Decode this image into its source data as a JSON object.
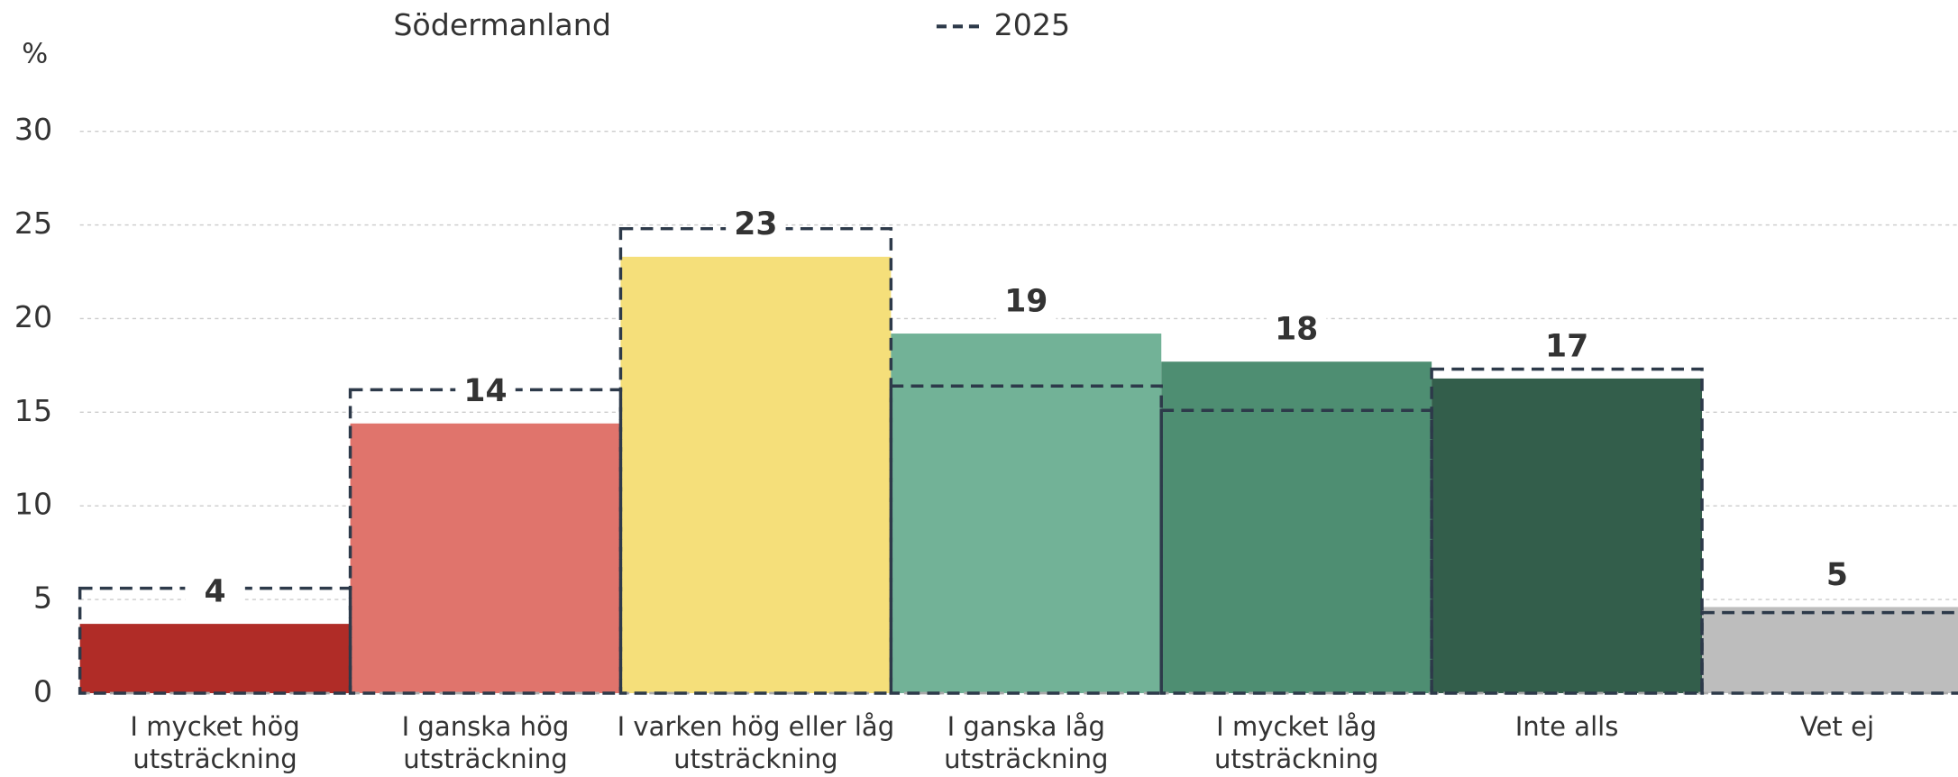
{
  "chart_data": {
    "type": "bar",
    "y_label": "%",
    "categories": [
      "I mycket hög utsträckning",
      "I ganska hög utsträckning",
      "I varken hög eller låg utsträckning",
      "I ganska låg utsträckning",
      "I mycket låg utsträckning",
      "Inte alls",
      "Vet ej"
    ],
    "series": [
      {
        "name": "Södermanland",
        "colors": [
          "#b02c27",
          "#e0746c",
          "#f5df7a",
          "#72b297",
          "#4e8e72",
          "#335e4b",
          "#bdbdbd"
        ],
        "values": [
          3.7,
          14.4,
          23.3,
          19.2,
          17.7,
          16.8,
          4.6
        ],
        "value_labels": [
          "4",
          "14",
          "23",
          "19",
          "18",
          "17",
          "5"
        ]
      },
      {
        "name": "2025",
        "color": "#2d3a4a",
        "style": "dashed",
        "values": [
          5.6,
          16.2,
          24.8,
          16.4,
          15.1,
          17.3,
          4.3
        ]
      }
    ],
    "ylim": [
      0,
      30
    ],
    "yticks": [
      0,
      5,
      10,
      15,
      20,
      25,
      30
    ],
    "grid": true
  }
}
